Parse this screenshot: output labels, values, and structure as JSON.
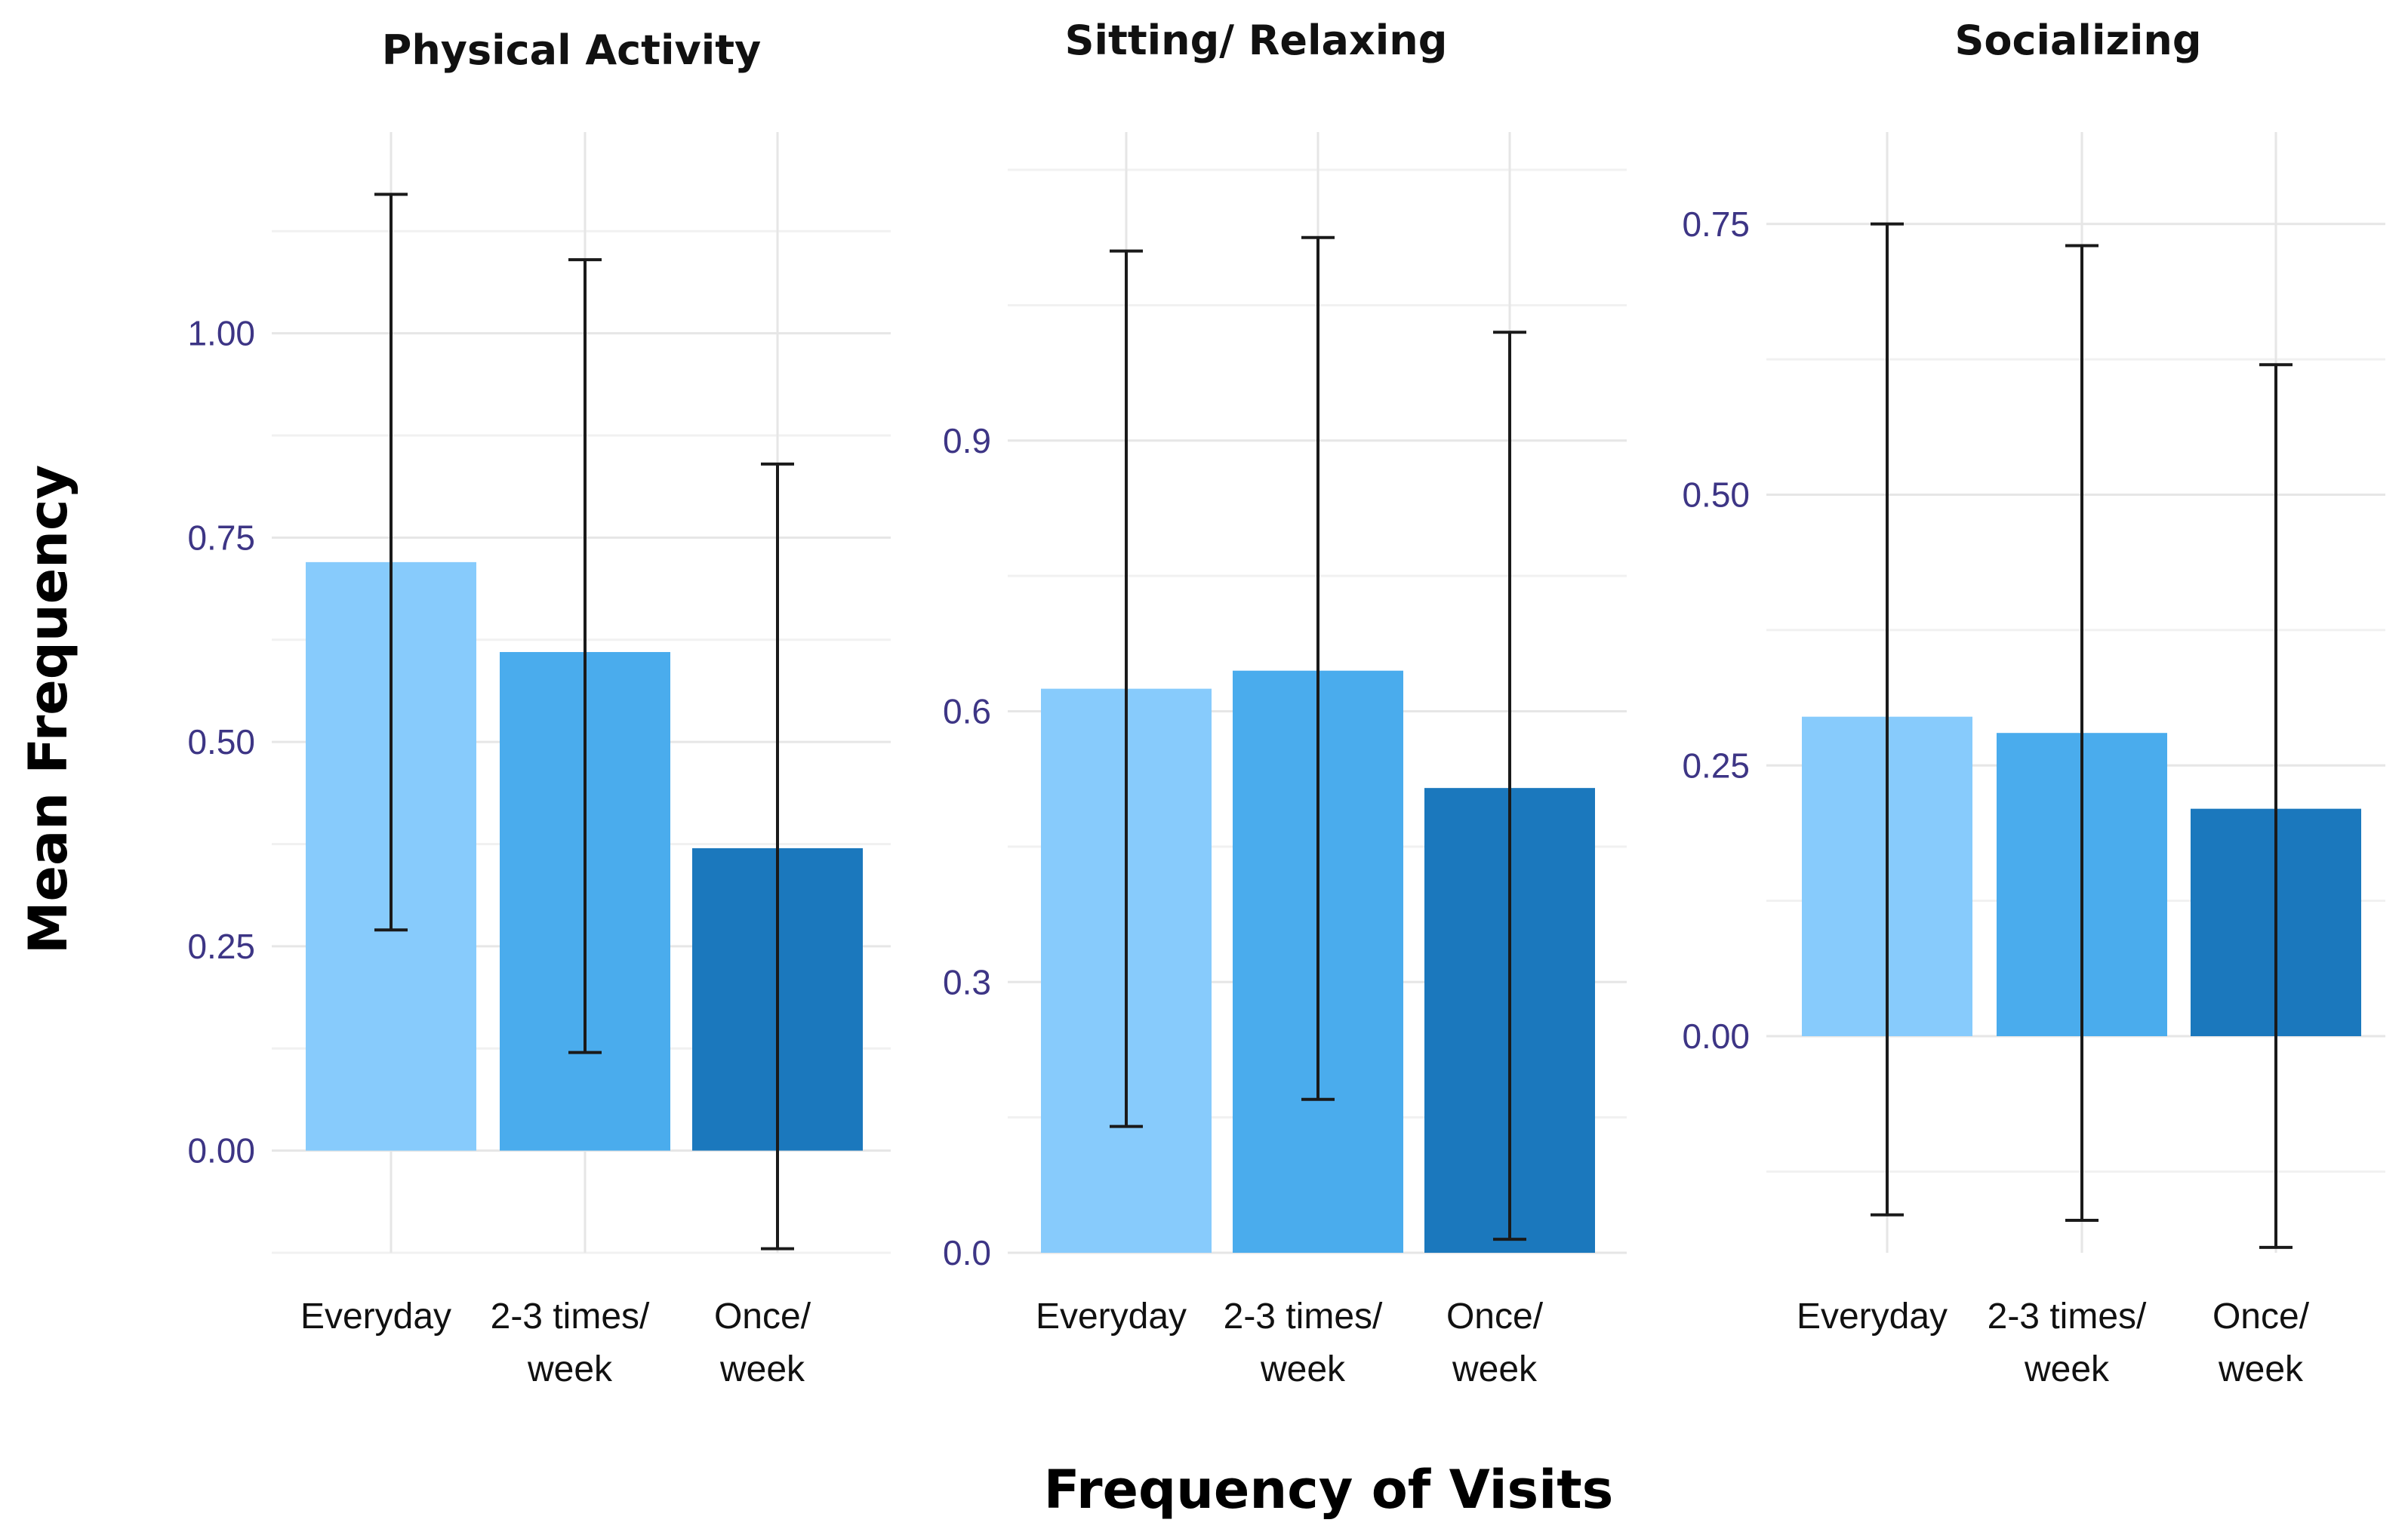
{
  "chart_data": [
    {
      "type": "bar",
      "title": "Physical Activity",
      "categories": [
        "Everyday",
        "2-3 times/ week",
        "Once/ week"
      ],
      "category_lines": [
        [
          "Everyday"
        ],
        [
          "2-3 times/",
          "week"
        ],
        [
          "Once/",
          "week"
        ]
      ],
      "values": [
        0.72,
        0.61,
        0.37
      ],
      "error_low": [
        0.27,
        0.12,
        -0.12
      ],
      "error_high": [
        1.17,
        1.09,
        0.84
      ],
      "ylim": [
        -0.125,
        1.2
      ],
      "yticks": [
        0.0,
        0.25,
        0.5,
        0.75,
        1.0
      ],
      "ytick_labels": [
        "0.00",
        "0.25",
        "0.50",
        "0.75",
        "1.00"
      ],
      "colors": [
        "#87cbfc",
        "#4aaced",
        "#1b78bd"
      ]
    },
    {
      "type": "bar",
      "title": "Sitting/ Relaxing",
      "categories": [
        "Everyday",
        "2-3 times/ week",
        "Once/ week"
      ],
      "category_lines": [
        [
          "Everyday"
        ],
        [
          "2-3 times/",
          "week"
        ],
        [
          "Once/",
          "week"
        ]
      ],
      "values": [
        0.625,
        0.645,
        0.515
      ],
      "error_low": [
        0.14,
        0.17,
        0.015
      ],
      "error_high": [
        1.11,
        1.125,
        1.02
      ],
      "ylim": [
        0.0,
        1.2
      ],
      "yticks": [
        0.0,
        0.3,
        0.6,
        0.9
      ],
      "ytick_labels": [
        "0.0",
        "0.3",
        "0.6",
        "0.9"
      ],
      "colors": [
        "#87cbfc",
        "#4aaced",
        "#1b78bd"
      ]
    },
    {
      "type": "bar",
      "title": "Socializing",
      "categories": [
        "Everyday",
        "2-3 times/ week",
        "Once/ week"
      ],
      "category_lines": [
        [
          "Everyday"
        ],
        [
          "2-3 times/",
          "week"
        ],
        [
          "Once/",
          "week"
        ]
      ],
      "values": [
        0.295,
        0.28,
        0.21
      ],
      "error_low": [
        -0.165,
        -0.17,
        -0.195
      ],
      "error_high": [
        0.75,
        0.73,
        0.62
      ],
      "ylim": [
        -0.2,
        0.8
      ],
      "yticks": [
        0.0,
        0.25,
        0.5,
        0.75
      ],
      "ytick_labels": [
        "0.00",
        "0.25",
        "0.50",
        "0.75"
      ],
      "colors": [
        "#87cbfc",
        "#4aaced",
        "#1b78bd"
      ]
    }
  ],
  "xlabel": "Frequency of Visits",
  "ylabel": "Mean Frequency"
}
